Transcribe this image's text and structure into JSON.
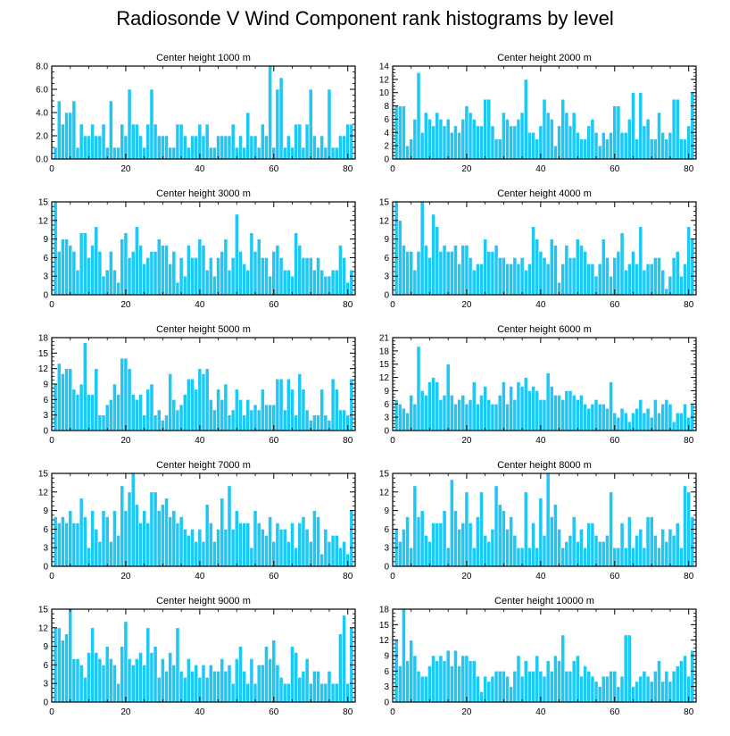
{
  "title": "Radiosonde V Wind Component rank histograms by level",
  "colors": {
    "bar": "#1ec8f5",
    "bar_edge": "#ffffff",
    "axis": "#000000"
  },
  "chart_data": [
    {
      "type": "bar",
      "title": "Center height 1000 m",
      "xlim": [
        0,
        82
      ],
      "ylim": [
        0,
        8
      ],
      "xticks": [
        0,
        20,
        40,
        60,
        80
      ],
      "yticks": [
        0,
        2,
        4,
        6,
        8
      ],
      "ytick_labels": [
        "0.0",
        "2.0",
        "4.0",
        "6.0",
        "8.0"
      ],
      "x_start": 1,
      "values": [
        1,
        5,
        3,
        4,
        4,
        5,
        1,
        3,
        2,
        2,
        3,
        2,
        2,
        3,
        1,
        5,
        1,
        1,
        3,
        2,
        6,
        3,
        3,
        2,
        1,
        3,
        6,
        3,
        2,
        2,
        2,
        1,
        1,
        3,
        3,
        2,
        1,
        2,
        2,
        3,
        2,
        3,
        1,
        1,
        2,
        2,
        2,
        2,
        3,
        1,
        2,
        1,
        4,
        2,
        2,
        1,
        3,
        2,
        8,
        1,
        6,
        7,
        1,
        2,
        1,
        3,
        3,
        1,
        3,
        6,
        2,
        1,
        2,
        1,
        6,
        1,
        1,
        2,
        2,
        3,
        3
      ]
    },
    {
      "type": "bar",
      "title": "Center height 2000 m",
      "xlim": [
        0,
        82
      ],
      "ylim": [
        0,
        14
      ],
      "xticks": [
        0,
        20,
        40,
        60,
        80
      ],
      "yticks": [
        0,
        2,
        4,
        6,
        8,
        10,
        12,
        14
      ],
      "ytick_labels": [
        "0",
        "2",
        "4",
        "6",
        "8",
        "10",
        "12",
        "14"
      ],
      "x_start": 1,
      "values": [
        8,
        8,
        8,
        2,
        3,
        6,
        13,
        4,
        7,
        6,
        5,
        7,
        6,
        5,
        6,
        4,
        5,
        4,
        6,
        8,
        7,
        6,
        5,
        5,
        9,
        9,
        5,
        3,
        3,
        7,
        6,
        5,
        5,
        6,
        7,
        12,
        4,
        4,
        3,
        5,
        9,
        7,
        6,
        2,
        5,
        9,
        7,
        5,
        7,
        4,
        3,
        3,
        5,
        6,
        4,
        2,
        4,
        3,
        4,
        8,
        8,
        4,
        4,
        6,
        10,
        3,
        10,
        5,
        6,
        3,
        3,
        7,
        4,
        3,
        4,
        9,
        9,
        3,
        3,
        5,
        10
      ]
    },
    {
      "type": "bar",
      "title": "Center height 3000 m",
      "xlim": [
        0,
        82
      ],
      "ylim": [
        0,
        15
      ],
      "xticks": [
        0,
        20,
        40,
        60,
        80
      ],
      "yticks": [
        0,
        3,
        6,
        9,
        12,
        15
      ],
      "ytick_labels": [
        "0",
        "3",
        "6",
        "9",
        "12",
        "15"
      ],
      "x_start": 1,
      "values": [
        15,
        7,
        9,
        9,
        8,
        7,
        4,
        10,
        10,
        6,
        8,
        11,
        7,
        3,
        4,
        7,
        4,
        2,
        9,
        10,
        6,
        7,
        11,
        8,
        5,
        6,
        7,
        7,
        9,
        8,
        8,
        5,
        7,
        2,
        6,
        3,
        8,
        6,
        6,
        9,
        8,
        4,
        6,
        3,
        6,
        7,
        9,
        4,
        6,
        13,
        7,
        5,
        4,
        10,
        7,
        9,
        6,
        6,
        3,
        7,
        8,
        6,
        4,
        4,
        3,
        10,
        8,
        6,
        6,
        6,
        4,
        6,
        4,
        3,
        3,
        4,
        4,
        8,
        6,
        2,
        4
      ]
    },
    {
      "type": "bar",
      "title": "Center height 4000 m",
      "xlim": [
        0,
        82
      ],
      "ylim": [
        0,
        15
      ],
      "xticks": [
        0,
        20,
        40,
        60,
        80
      ],
      "yticks": [
        0,
        3,
        6,
        9,
        12,
        15
      ],
      "ytick_labels": [
        "0",
        "3",
        "6",
        "9",
        "12",
        "15"
      ],
      "x_start": 1,
      "values": [
        15,
        12,
        8,
        7,
        7,
        4,
        7,
        15,
        8,
        6,
        13,
        11,
        7,
        8,
        7,
        7,
        8,
        5,
        8,
        8,
        6,
        4,
        5,
        5,
        9,
        7,
        7,
        8,
        6,
        6,
        5,
        5,
        6,
        5,
        6,
        4,
        5,
        11,
        9,
        7,
        6,
        5,
        9,
        8,
        2,
        5,
        8,
        6,
        6,
        9,
        8,
        7,
        5,
        5,
        3,
        5,
        9,
        6,
        3,
        6,
        7,
        10,
        4,
        5,
        7,
        5,
        11,
        4,
        5,
        5,
        6,
        6,
        4,
        1,
        3,
        6,
        7,
        3,
        5,
        11,
        9
      ]
    },
    {
      "type": "bar",
      "title": "Center height 5000 m",
      "xlim": [
        0,
        82
      ],
      "ylim": [
        0,
        18
      ],
      "xticks": [
        0,
        20,
        40,
        60,
        80
      ],
      "yticks": [
        0,
        3,
        6,
        9,
        12,
        15,
        18
      ],
      "ytick_labels": [
        "0",
        "3",
        "6",
        "9",
        "12",
        "15",
        "18"
      ],
      "x_start": 1,
      "values": [
        9,
        13,
        11,
        12,
        12,
        8,
        7,
        9,
        17,
        7,
        7,
        12,
        3,
        3,
        5,
        6,
        9,
        7,
        14,
        14,
        12,
        7,
        6,
        7,
        3,
        8,
        9,
        3,
        4,
        2,
        3,
        11,
        6,
        4,
        5,
        7,
        10,
        10,
        8,
        12,
        11,
        12,
        6,
        4,
        8,
        6,
        9,
        3,
        4,
        8,
        6,
        3,
        6,
        4,
        5,
        4,
        8,
        5,
        5,
        5,
        10,
        10,
        4,
        10,
        8,
        3,
        11,
        8,
        4,
        2,
        3,
        3,
        8,
        3,
        2,
        10,
        8,
        4,
        4,
        3,
        10
      ]
    },
    {
      "type": "bar",
      "title": "Center height 6000 m",
      "xlim": [
        0,
        82
      ],
      "ylim": [
        0,
        21
      ],
      "xticks": [
        0,
        20,
        40,
        60,
        80
      ],
      "yticks": [
        0,
        3,
        6,
        9,
        12,
        15,
        18,
        21
      ],
      "ytick_labels": [
        "0",
        "3",
        "6",
        "9",
        "12",
        "15",
        "18",
        "21"
      ],
      "x_start": 1,
      "values": [
        7,
        6,
        5,
        4,
        8,
        6,
        19,
        9,
        8,
        11,
        12,
        11,
        7,
        8,
        15,
        8,
        6,
        7,
        8,
        6,
        7,
        11,
        6,
        8,
        10,
        7,
        6,
        6,
        8,
        11,
        6,
        10,
        7,
        11,
        10,
        12,
        9,
        10,
        9,
        7,
        7,
        13,
        10,
        8,
        8,
        7,
        9,
        9,
        8,
        7,
        8,
        6,
        5,
        6,
        7,
        6,
        6,
        5,
        11,
        4,
        3,
        5,
        4,
        2,
        4,
        5,
        7,
        4,
        5,
        3,
        7,
        4,
        6,
        7,
        6,
        2,
        4,
        4,
        6,
        3,
        6
      ]
    },
    {
      "type": "bar",
      "title": "Center height 7000 m",
      "xlim": [
        0,
        82
      ],
      "ylim": [
        0,
        15
      ],
      "xticks": [
        0,
        20,
        40,
        60,
        80
      ],
      "yticks": [
        0,
        3,
        6,
        9,
        12,
        15
      ],
      "ytick_labels": [
        "0",
        "3",
        "6",
        "9",
        "12",
        "15"
      ],
      "x_start": 1,
      "values": [
        8,
        7,
        8,
        7,
        9,
        7,
        7,
        11,
        8,
        3,
        9,
        6,
        4,
        9,
        8,
        4,
        9,
        5,
        13,
        9,
        12,
        15,
        10,
        7,
        9,
        7,
        12,
        12,
        9,
        10,
        11,
        8,
        9,
        7,
        8,
        6,
        5,
        6,
        4,
        6,
        4,
        10,
        7,
        4,
        6,
        11,
        6,
        13,
        6,
        9,
        7,
        7,
        7,
        3,
        9,
        7,
        6,
        5,
        8,
        4,
        7,
        6,
        6,
        4,
        7,
        3,
        7,
        8,
        6,
        4,
        9,
        8,
        2,
        6,
        4,
        5,
        5,
        3,
        4,
        2,
        9
      ]
    },
    {
      "type": "bar",
      "title": "Center height 8000 m",
      "xlim": [
        0,
        82
      ],
      "ylim": [
        0,
        15
      ],
      "xticks": [
        0,
        20,
        40,
        60,
        80
      ],
      "yticks": [
        0,
        3,
        6,
        9,
        12,
        15
      ],
      "ytick_labels": [
        "0",
        "3",
        "6",
        "9",
        "12",
        "15"
      ],
      "x_start": 1,
      "values": [
        6,
        4,
        6,
        8,
        3,
        13,
        8,
        9,
        5,
        4,
        7,
        7,
        7,
        9,
        3,
        14,
        9,
        6,
        7,
        12,
        7,
        3,
        8,
        12,
        5,
        4,
        6,
        13,
        10,
        9,
        6,
        8,
        5,
        3,
        3,
        12,
        3,
        7,
        3,
        11,
        5,
        15,
        8,
        10,
        6,
        3,
        4,
        5,
        8,
        4,
        6,
        3,
        7,
        7,
        5,
        4,
        4,
        5,
        12,
        3,
        3,
        7,
        3,
        8,
        3,
        5,
        6,
        3,
        8,
        8,
        5,
        3,
        6,
        4,
        6,
        5,
        7,
        3,
        13,
        12,
        8
      ]
    },
    {
      "type": "bar",
      "title": "Center height 9000 m",
      "xlim": [
        0,
        82
      ],
      "ylim": [
        0,
        15
      ],
      "xticks": [
        0,
        20,
        40,
        60,
        80
      ],
      "yticks": [
        0,
        3,
        6,
        9,
        12,
        15
      ],
      "ytick_labels": [
        "0",
        "3",
        "6",
        "9",
        "12",
        "15"
      ],
      "x_start": 1,
      "values": [
        12,
        12,
        10,
        11,
        15,
        7,
        7,
        6,
        4,
        8,
        12,
        8,
        7,
        6,
        9,
        7,
        6,
        3,
        9,
        13,
        7,
        6,
        7,
        8,
        6,
        12,
        8,
        9,
        4,
        7,
        5,
        8,
        6,
        12,
        5,
        4,
        7,
        5,
        6,
        4,
        6,
        4,
        6,
        5,
        5,
        7,
        5,
        6,
        3,
        7,
        9,
        5,
        3,
        7,
        3,
        6,
        6,
        9,
        7,
        10,
        6,
        4,
        3,
        3,
        9,
        8,
        4,
        5,
        7,
        3,
        5,
        5,
        3,
        3,
        5,
        3,
        3,
        11,
        14,
        3,
        12
      ]
    },
    {
      "type": "bar",
      "title": "Center height 10000 m",
      "xlim": [
        0,
        82
      ],
      "ylim": [
        0,
        18
      ],
      "xticks": [
        0,
        20,
        40,
        60,
        80
      ],
      "yticks": [
        0,
        3,
        6,
        9,
        12,
        15,
        18
      ],
      "ytick_labels": [
        "0",
        "3",
        "6",
        "9",
        "12",
        "15",
        "18"
      ],
      "x_start": 1,
      "values": [
        12,
        7,
        18,
        8,
        12,
        9,
        6,
        5,
        5,
        7,
        9,
        8,
        9,
        8,
        10,
        7,
        10,
        7,
        9,
        9,
        8,
        8,
        5,
        2,
        5,
        4,
        5,
        6,
        6,
        6,
        5,
        3,
        6,
        9,
        5,
        8,
        6,
        6,
        9,
        6,
        5,
        8,
        6,
        9,
        8,
        13,
        6,
        6,
        8,
        9,
        5,
        7,
        6,
        5,
        4,
        3,
        5,
        5,
        6,
        6,
        3,
        5,
        13,
        13,
        3,
        4,
        5,
        6,
        5,
        4,
        6,
        8,
        4,
        6,
        4,
        6,
        7,
        8,
        9,
        5,
        10
      ]
    }
  ]
}
